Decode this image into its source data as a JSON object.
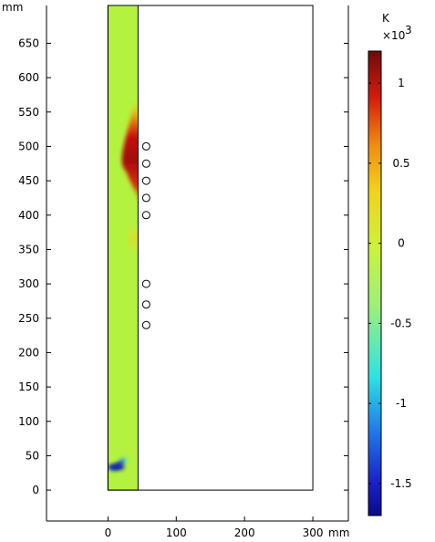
{
  "chart_data": {
    "type": "heatmap",
    "x_unit": "mm",
    "y_unit": "mm",
    "x_ticks": [
      0,
      100,
      200,
      300
    ],
    "y_ticks": [
      0,
      50,
      100,
      150,
      200,
      250,
      300,
      350,
      400,
      450,
      500,
      550,
      600,
      650
    ],
    "xlim": [
      -90,
      352
    ],
    "ylim": [
      -45,
      705
    ],
    "domain": {
      "x": [
        0,
        300
      ],
      "y": [
        0,
        705
      ]
    },
    "field_strip": {
      "x": [
        0,
        44
      ],
      "y": [
        0,
        705
      ]
    },
    "markers": [
      {
        "x": 56,
        "y": 500
      },
      {
        "x": 56,
        "y": 475
      },
      {
        "x": 56,
        "y": 450
      },
      {
        "x": 56,
        "y": 425
      },
      {
        "x": 56,
        "y": 400
      },
      {
        "x": 56,
        "y": 300
      },
      {
        "x": 56,
        "y": 270
      },
      {
        "x": 56,
        "y": 240
      }
    ],
    "field_features": [
      {
        "type": "hot-band",
        "x_center": 32,
        "y_range": [
          410,
          570
        ],
        "peak": 1150
      },
      {
        "type": "warm-spot",
        "x_center": 37,
        "y_range": [
          340,
          390
        ],
        "peak": 350
      },
      {
        "type": "cold-streak",
        "x_range": [
          0,
          30
        ],
        "y_range": [
          28,
          60
        ],
        "peak": -1500
      }
    ],
    "colorbar": {
      "unit": "K",
      "multiplier": "×10",
      "multiplier_exp": "3",
      "min": -1.7,
      "max": 1.2,
      "tick_values": [
        1,
        0.5,
        0,
        -0.5,
        -1,
        -1.5
      ],
      "tick_labels": [
        "1",
        "0.5",
        "0",
        "-0.5",
        "-1",
        "-1.5"
      ],
      "colormap": "jet"
    }
  },
  "colors": {
    "background_field": "#b3f23f",
    "axis": "#000000",
    "marker_fill": "#ffffff"
  }
}
